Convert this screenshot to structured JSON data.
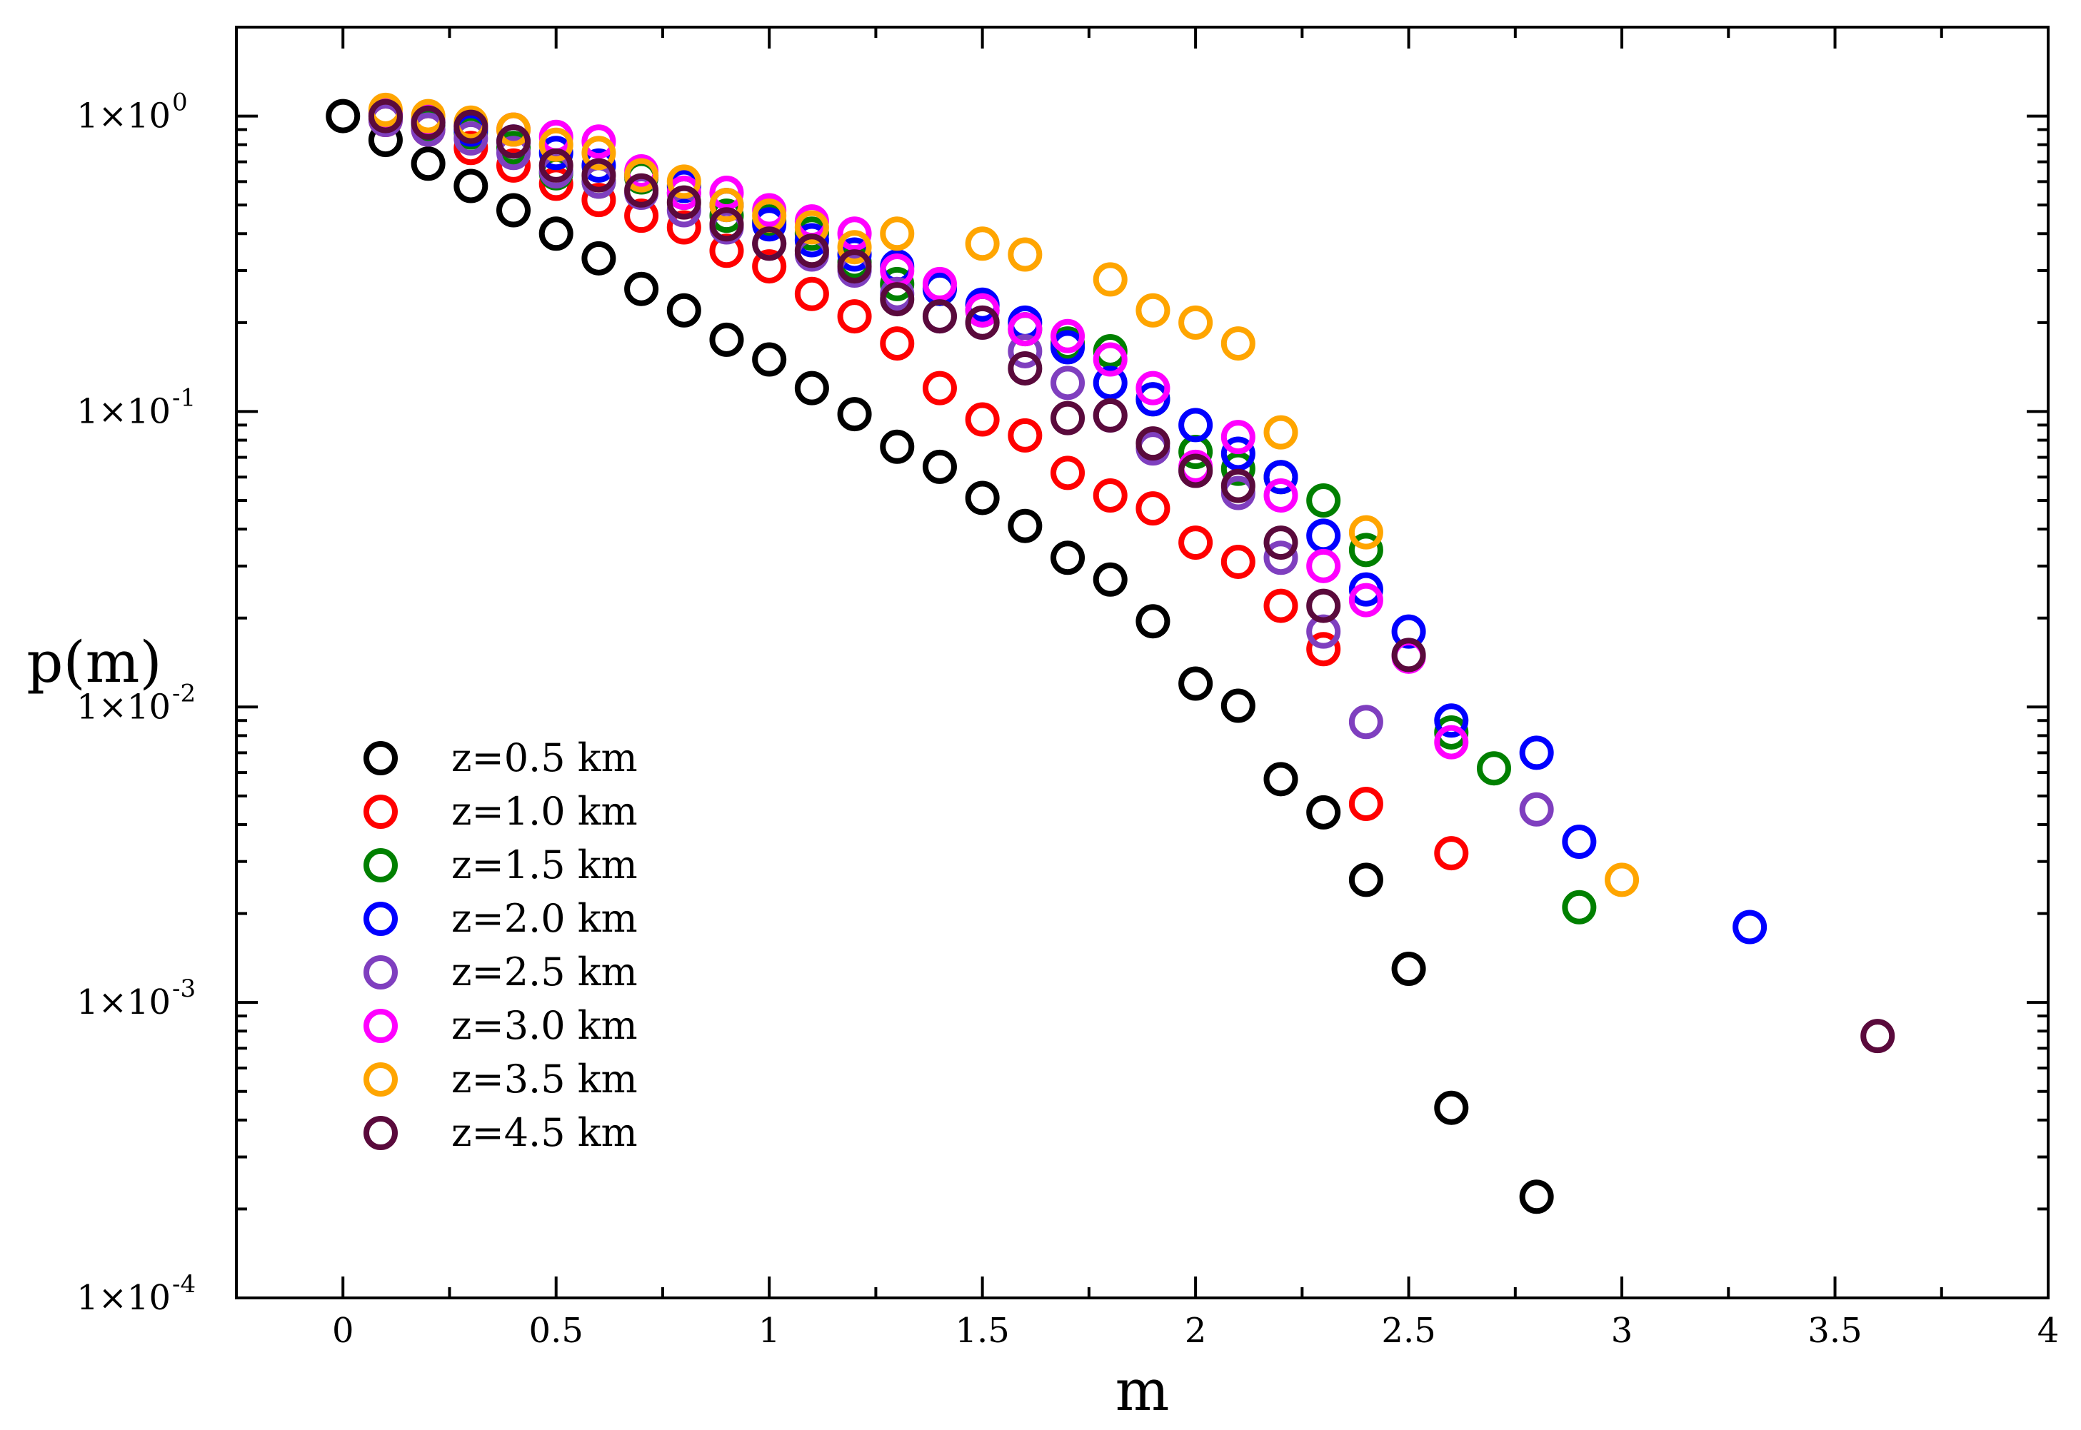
{
  "chart_data": {
    "type": "scatter",
    "xlabel": "m",
    "ylabel": "p(m)",
    "xlim": [
      -0.25,
      4.0
    ],
    "ylim": [
      0.0001,
      2.0
    ],
    "yscale": "log",
    "grid": false,
    "legend_location": "lower-left",
    "x_ticks": [
      {
        "value": 0,
        "label": "0"
      },
      {
        "value": 0.5,
        "label": "0.5"
      },
      {
        "value": 1,
        "label": "1"
      },
      {
        "value": 1.5,
        "label": "1.5"
      },
      {
        "value": 2,
        "label": "2"
      },
      {
        "value": 2.5,
        "label": "2.5"
      },
      {
        "value": 3,
        "label": "3"
      },
      {
        "value": 3.5,
        "label": "3.5"
      },
      {
        "value": 4,
        "label": "4"
      }
    ],
    "y_ticks": [
      {
        "value": 1,
        "mantissa": "1×10",
        "exponent": "0"
      },
      {
        "value": 0.1,
        "mantissa": "1×10",
        "exponent": "-1"
      },
      {
        "value": 0.01,
        "mantissa": "1×10",
        "exponent": "-2"
      },
      {
        "value": 0.001,
        "mantissa": "1×10",
        "exponent": "-3"
      },
      {
        "value": 0.0001,
        "mantissa": "1×10",
        "exponent": "-4"
      }
    ],
    "series": [
      {
        "name": "z=0.5 km",
        "color": "#000000",
        "x": [
          0,
          0.1,
          0.2,
          0.3,
          0.4,
          0.5,
          0.6,
          0.7,
          0.8,
          0.9,
          1.0,
          1.1,
          1.2,
          1.3,
          1.4,
          1.5,
          1.6,
          1.7,
          1.8,
          1.9,
          2.0,
          2.1,
          2.2,
          2.3,
          2.4,
          2.5,
          2.6,
          2.8
        ],
        "y": [
          1.0,
          0.83,
          0.69,
          0.58,
          0.48,
          0.4,
          0.33,
          0.26,
          0.22,
          0.175,
          0.15,
          0.12,
          0.098,
          0.076,
          0.065,
          0.051,
          0.041,
          0.032,
          0.027,
          0.0195,
          0.012,
          0.0101,
          0.0057,
          0.0044,
          0.0026,
          0.0013,
          0.00044,
          0.00022
        ]
      },
      {
        "name": "z=1.0 km",
        "color": "#ff0000",
        "x": [
          0.1,
          0.2,
          0.3,
          0.4,
          0.5,
          0.6,
          0.7,
          0.8,
          0.9,
          1.0,
          1.1,
          1.2,
          1.3,
          1.4,
          1.5,
          1.6,
          1.7,
          1.8,
          1.9,
          2.0,
          2.1,
          2.2,
          2.3,
          2.4,
          2.6
        ],
        "y": [
          0.97,
          0.9,
          0.78,
          0.68,
          0.59,
          0.52,
          0.46,
          0.42,
          0.35,
          0.31,
          0.25,
          0.21,
          0.17,
          0.12,
          0.094,
          0.083,
          0.062,
          0.052,
          0.047,
          0.036,
          0.031,
          0.022,
          0.0157,
          0.0047,
          0.0032
        ]
      },
      {
        "name": "z=1.5 km",
        "color": "#008000",
        "x": [
          0.1,
          0.2,
          0.3,
          0.4,
          0.5,
          0.6,
          0.7,
          0.8,
          0.9,
          1.0,
          1.1,
          1.2,
          1.3,
          1.4,
          1.5,
          1.6,
          1.7,
          1.8,
          1.9,
          2.0,
          2.1,
          2.2,
          2.3,
          2.4,
          2.6,
          2.7,
          2.9
        ],
        "y": [
          0.98,
          0.93,
          0.88,
          0.78,
          0.64,
          0.6,
          0.62,
          0.55,
          0.46,
          0.44,
          0.4,
          0.32,
          0.27,
          0.26,
          0.22,
          0.19,
          0.17,
          0.16,
          0.11,
          0.073,
          0.064,
          0.06,
          0.05,
          0.034,
          0.0082,
          0.0062,
          0.0021
        ]
      },
      {
        "name": "z=2.0 km",
        "color": "#0000ff",
        "x": [
          0.1,
          0.2,
          0.3,
          0.4,
          0.5,
          0.6,
          0.7,
          0.8,
          0.9,
          1.0,
          1.1,
          1.2,
          1.3,
          1.4,
          1.5,
          1.6,
          1.7,
          1.8,
          1.9,
          2.0,
          2.1,
          2.2,
          2.3,
          2.4,
          2.5,
          2.6,
          2.8,
          2.9,
          3.3
        ],
        "y": [
          1.0,
          0.95,
          0.9,
          0.82,
          0.75,
          0.68,
          0.63,
          0.58,
          0.5,
          0.43,
          0.38,
          0.34,
          0.31,
          0.26,
          0.23,
          0.2,
          0.165,
          0.125,
          0.11,
          0.09,
          0.072,
          0.06,
          0.038,
          0.025,
          0.018,
          0.009,
          0.007,
          0.0035,
          0.0018
        ]
      },
      {
        "name": "z=2.5 km",
        "color": "#7f3fbf",
        "x": [
          0.1,
          0.2,
          0.3,
          0.4,
          0.5,
          0.6,
          0.7,
          0.8,
          0.9,
          1.0,
          1.1,
          1.2,
          1.3,
          1.4,
          1.5,
          1.6,
          1.7,
          1.8,
          1.9,
          2.0,
          2.1,
          2.2,
          2.3,
          2.4,
          2.8
        ],
        "y": [
          0.97,
          0.9,
          0.84,
          0.75,
          0.65,
          0.6,
          0.55,
          0.48,
          0.42,
          0.37,
          0.34,
          0.3,
          0.25,
          0.21,
          0.2,
          0.16,
          0.125,
          0.097,
          0.075,
          0.063,
          0.053,
          0.032,
          0.018,
          0.0089,
          0.0045
        ]
      },
      {
        "name": "z=3.0 km",
        "color": "#ff00ff",
        "x": [
          0.1,
          0.2,
          0.3,
          0.4,
          0.5,
          0.6,
          0.7,
          0.8,
          0.9,
          1.0,
          1.1,
          1.2,
          1.3,
          1.4,
          1.5,
          1.6,
          1.7,
          1.8,
          1.9,
          2.0,
          2.1,
          2.2,
          2.3,
          2.4,
          2.5,
          2.6
        ],
        "y": [
          1.02,
          0.97,
          0.93,
          0.9,
          0.85,
          0.82,
          0.65,
          0.55,
          0.55,
          0.48,
          0.44,
          0.4,
          0.3,
          0.27,
          0.22,
          0.19,
          0.18,
          0.15,
          0.12,
          0.065,
          0.082,
          0.052,
          0.03,
          0.023,
          0.0148,
          0.0076
        ]
      },
      {
        "name": "z=3.5 km",
        "color": "#ffa500",
        "x": [
          0.1,
          0.2,
          0.3,
          0.4,
          0.5,
          0.6,
          0.7,
          0.8,
          0.9,
          1.0,
          1.1,
          1.2,
          1.3,
          1.5,
          1.6,
          1.8,
          1.9,
          2.0,
          2.1,
          2.2,
          2.4,
          3.0
        ],
        "y": [
          1.05,
          1.0,
          0.95,
          0.9,
          0.8,
          0.75,
          0.63,
          0.6,
          0.5,
          0.46,
          0.42,
          0.36,
          0.4,
          0.37,
          0.34,
          0.28,
          0.22,
          0.2,
          0.17,
          0.085,
          0.039,
          0.0026
        ]
      },
      {
        "name": "z=4.5 km",
        "color": "#5a0a3c",
        "x": [
          0.1,
          0.2,
          0.3,
          0.4,
          0.5,
          0.6,
          0.7,
          0.8,
          0.9,
          1.0,
          1.1,
          1.2,
          1.3,
          1.4,
          1.5,
          1.6,
          1.7,
          1.8,
          1.9,
          2.0,
          2.1,
          2.2,
          2.3,
          2.5,
          3.6
        ],
        "y": [
          1.0,
          0.95,
          0.92,
          0.82,
          0.68,
          0.63,
          0.56,
          0.51,
          0.43,
          0.37,
          0.35,
          0.31,
          0.24,
          0.21,
          0.2,
          0.14,
          0.095,
          0.097,
          0.078,
          0.063,
          0.056,
          0.036,
          0.022,
          0.015,
          0.00077
        ]
      }
    ]
  }
}
